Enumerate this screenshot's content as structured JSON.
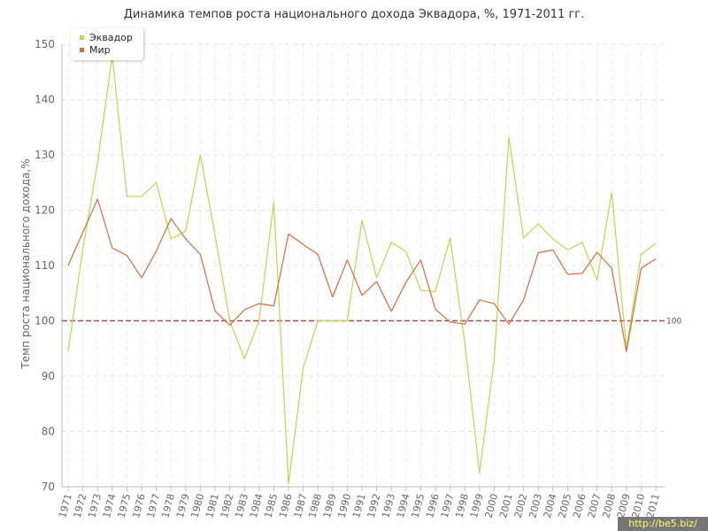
{
  "chart_data": {
    "type": "line",
    "title": "Динамика темпов роста национального дохода Эквадора, %, 1971-2011 гг.",
    "ylabel": "Темп роста национального дохода,%",
    "xlabel": "",
    "ylim": [
      70,
      150
    ],
    "yticks": [
      "70",
      "80",
      "90",
      "100",
      "110",
      "120",
      "130",
      "140",
      "150"
    ],
    "grid": true,
    "legend_position": "top-left",
    "reference_line": {
      "value": 100,
      "label": "100",
      "color": "#a0504a"
    },
    "x": [
      "1971",
      "1972",
      "1973",
      "1974",
      "1975",
      "1976",
      "1977",
      "1978",
      "1979",
      "1980",
      "1981",
      "1982",
      "1983",
      "1984",
      "1985",
      "1986",
      "1987",
      "1988",
      "1989",
      "1990",
      "1991",
      "1992",
      "1993",
      "1994",
      "1995",
      "1996",
      "1997",
      "1998",
      "1999",
      "2000",
      "2001",
      "2002",
      "2003",
      "2004",
      "2005",
      "2006",
      "2007",
      "2008",
      "2009",
      "2010",
      "2011"
    ],
    "series": [
      {
        "name": "Эквадор",
        "color": "#bcd84a",
        "values": [
          94.5,
          113,
          128.5,
          148,
          122.5,
          122.5,
          125,
          114.8,
          116.2,
          130,
          115.5,
          100,
          93.2,
          100,
          121.5,
          70.5,
          91.5,
          100,
          100,
          100,
          118.2,
          107.8,
          114.2,
          112.5,
          105.5,
          105.3,
          115,
          96,
          72.5,
          93,
          133.2,
          115,
          117.5,
          114.8,
          112.8,
          114.2,
          107.3,
          123.2,
          95,
          112,
          114
        ]
      },
      {
        "name": "Мир",
        "color": "#d86a3c",
        "values": [
          110,
          116,
          122,
          113.2,
          111.8,
          107.8,
          112.6,
          118.5,
          114.8,
          112,
          101.8,
          99.2,
          102,
          103.1,
          102.7,
          115.7,
          113.8,
          112,
          104.3,
          111,
          104.6,
          107.1,
          101.7,
          107,
          111,
          102.1,
          99.8,
          99.4,
          103.8,
          103.1,
          99.4,
          103.8,
          112.3,
          112.8,
          108.4,
          108.6,
          112.4,
          109.5,
          94.4,
          109.5,
          111.2
        ]
      }
    ]
  },
  "watermark": "http://be5.biz/"
}
